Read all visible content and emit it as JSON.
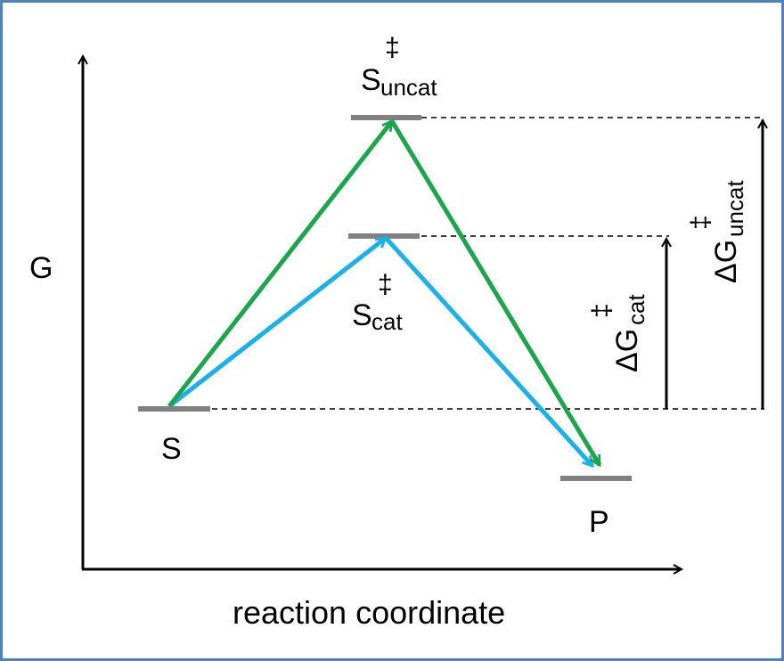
{
  "axes": {
    "y_label": "G",
    "x_label": "reaction coordinate"
  },
  "states": {
    "substrate": "S",
    "product": "P",
    "ts_uncat": {
      "base": "S",
      "sup": "‡",
      "sub": "uncat"
    },
    "ts_cat": {
      "base": "S",
      "sup": "‡",
      "sub": "cat"
    }
  },
  "barriers": {
    "dg_cat": {
      "delta": "ΔG",
      "sup": "‡",
      "sub": "cat"
    },
    "dg_uncat": {
      "delta": "ΔG",
      "sup": "‡",
      "sub": "uncat"
    }
  },
  "colors": {
    "axis": "#000000",
    "level": "#808080",
    "uncatalyzed_path": "#1aa64a",
    "catalyzed_path": "#1ab0ea",
    "frame": "#4f81bd"
  }
}
